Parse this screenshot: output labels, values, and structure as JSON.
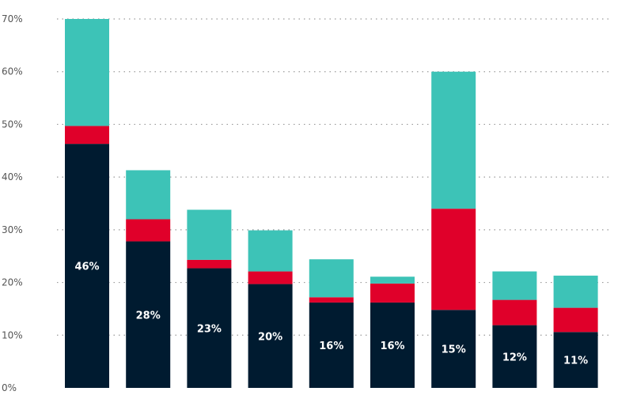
{
  "chart_data": {
    "type": "bar",
    "stacked": true,
    "title": "",
    "xlabel": "",
    "ylabel": "",
    "ylim": [
      0,
      70
    ],
    "y_ticks": [
      "0%",
      "10%",
      "20%",
      "30%",
      "40%",
      "50%",
      "60%",
      "70%"
    ],
    "grid": "horizontal dotted",
    "legend": "none",
    "categories": [
      "",
      "",
      "",
      "",
      "",
      "",
      "",
      "",
      ""
    ],
    "data_labels": [
      "46%",
      "28%",
      "23%",
      "20%",
      "16%",
      "16%",
      "15%",
      "12%",
      "11%"
    ],
    "series": [
      {
        "color": "#001b30",
        "values": [
          46.3,
          27.8,
          22.7,
          19.7,
          16.2,
          16.2,
          14.8,
          11.9,
          10.6
        ]
      },
      {
        "color": "#e0002a",
        "values": [
          3.4,
          4.2,
          1.6,
          2.4,
          1.0,
          3.6,
          19.2,
          4.8,
          4.6
        ]
      },
      {
        "color": "#3dc3b7",
        "values": [
          20.3,
          9.3,
          9.5,
          7.8,
          7.2,
          1.3,
          26.0,
          5.4,
          6.1
        ]
      }
    ]
  }
}
